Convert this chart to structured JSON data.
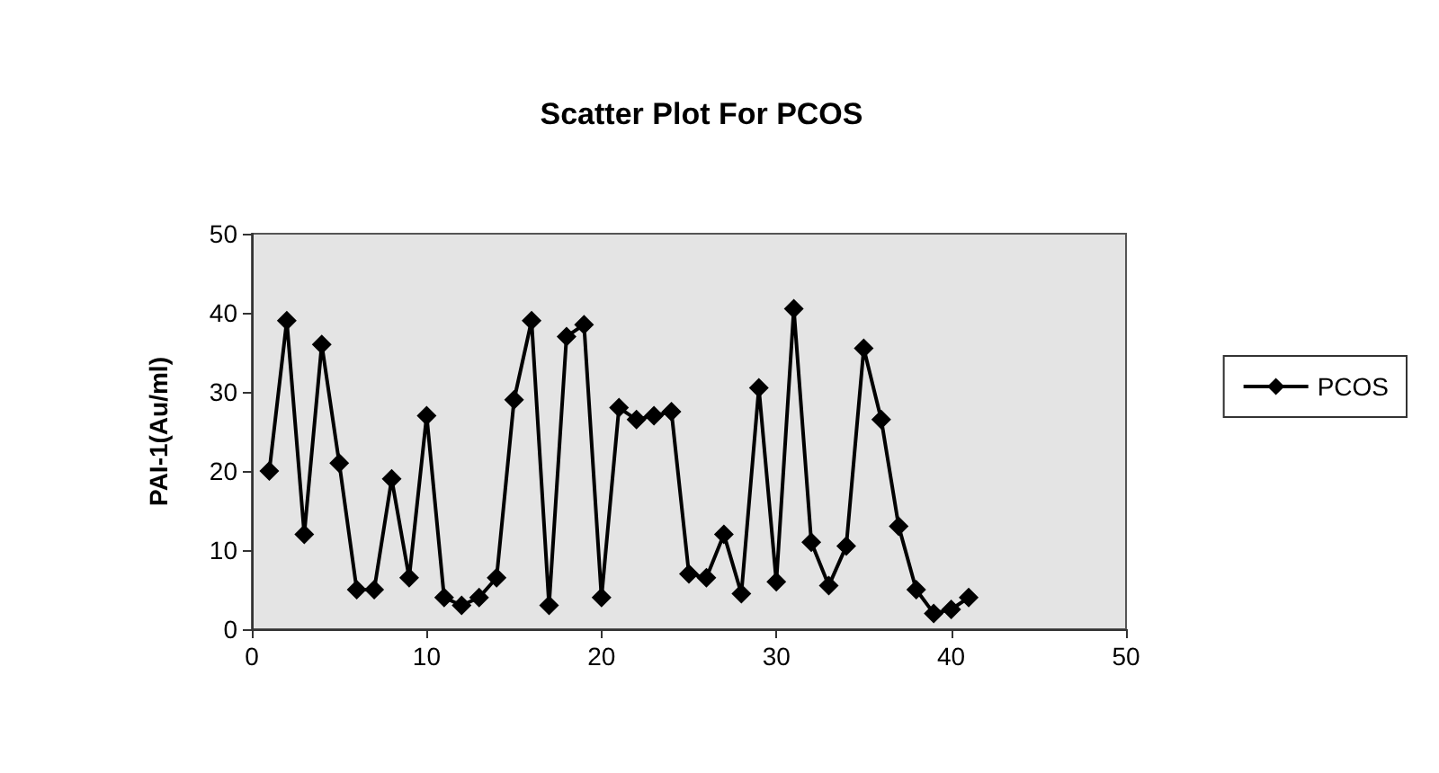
{
  "chart_data": {
    "type": "line",
    "title": "Scatter Plot For PCOS",
    "ylabel": "PAI-1(Au/ml)",
    "x": [
      1,
      2,
      3,
      4,
      5,
      6,
      7,
      8,
      9,
      10,
      11,
      12,
      13,
      14,
      15,
      16,
      17,
      18,
      19,
      20,
      21,
      22,
      23,
      24,
      25,
      26,
      27,
      28,
      29,
      30,
      31,
      32,
      33,
      34,
      35,
      36,
      37,
      38,
      39,
      40,
      41
    ],
    "series": [
      {
        "name": "PCOS",
        "color": "#000000",
        "values": [
          20,
          39,
          12,
          36,
          21,
          5,
          5,
          19,
          6.5,
          27,
          4,
          3,
          4,
          6.5,
          29,
          39,
          3,
          37,
          38.5,
          4,
          28,
          26.5,
          27,
          27.5,
          7,
          6.5,
          12,
          4.5,
          30.5,
          6,
          40.5,
          11,
          5.5,
          10.5,
          35.5,
          26.5,
          13,
          5,
          2,
          2.5,
          4
        ]
      }
    ],
    "xlim": [
      0,
      50
    ],
    "xticks": [
      0,
      10,
      20,
      30,
      40,
      50
    ],
    "ylim": [
      0,
      50
    ],
    "yticks": [
      0,
      10,
      20,
      30,
      40,
      50
    ],
    "grid": false,
    "legend": "right",
    "marker": "diamond",
    "line_style": "solid"
  }
}
